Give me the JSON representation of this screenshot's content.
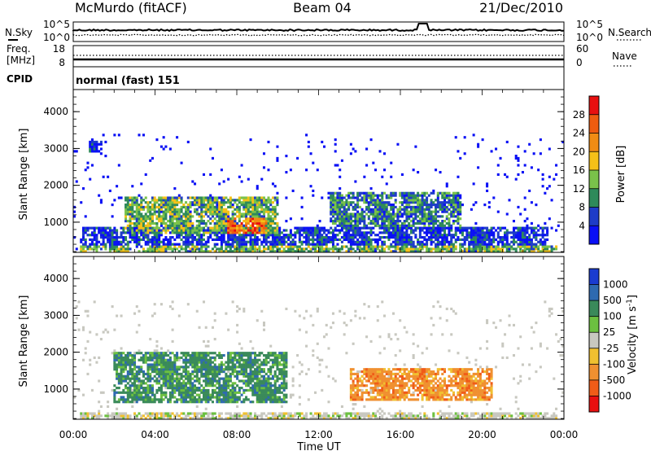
{
  "header": {
    "station": "McMurdo (fitACF)",
    "beam": "Beam 04",
    "date": "21/Dec/2010"
  },
  "noise_panel": {
    "left_label": "N.Sky",
    "left_ticks": [
      "10^5",
      "10^0"
    ],
    "right_label": "N.Search",
    "right_ticks": [
      "10^5",
      "10^0"
    ]
  },
  "freq_panel": {
    "left_label_1": "Freq.",
    "left_label_2": "[MHz]",
    "left_ticks": [
      "18",
      "8"
    ],
    "right_label": "Nave",
    "right_ticks": [
      "60",
      "0"
    ]
  },
  "cpid_panel": {
    "label": "CPID",
    "value": "normal (fast) 151"
  },
  "chart_data": [
    {
      "type": "heatmap",
      "panel": "power",
      "ylabel": "Slant Range [km]",
      "yticks": [
        "1000",
        "2000",
        "3000",
        "4000"
      ],
      "ylim": [
        180,
        4600
      ],
      "colorbar": {
        "label": "Power [dB]",
        "ticks": [
          "4",
          "8",
          "12",
          "16",
          "20",
          "24",
          "28"
        ],
        "range": [
          0,
          32
        ],
        "colors": [
          "#0a10f5",
          "#1e3cc8",
          "#2e8a5a",
          "#7ac24a",
          "#f5c018",
          "#f08c14",
          "#ee5c10",
          "#e81010"
        ]
      },
      "bands": [
        {
          "t0": 0.3,
          "t1": 23.7,
          "r0": 200,
          "r1": 400,
          "level": 3
        },
        {
          "t0": 0.4,
          "t1": 23.2,
          "r0": 400,
          "r1": 900,
          "level": 1
        },
        {
          "t0": 2.5,
          "t1": 10.0,
          "r0": 700,
          "r1": 1700,
          "level": 3
        },
        {
          "t0": 7.5,
          "t1": 9.5,
          "r0": 700,
          "r1": 1100,
          "level": 6
        },
        {
          "t0": 12.5,
          "t1": 19.0,
          "r0": 900,
          "r1": 1800,
          "level": 2
        },
        {
          "t0": 0.8,
          "t1": 1.4,
          "r0": 2900,
          "r1": 3200,
          "level": 1
        }
      ]
    },
    {
      "type": "heatmap",
      "panel": "velocity",
      "ylabel": "Slant Range [km]",
      "yticks": [
        "1000",
        "2000",
        "3000",
        "4000"
      ],
      "ylim": [
        180,
        4600
      ],
      "colorbar": {
        "label": "Velocity [m s-1]",
        "ticks": [
          "1000",
          "500",
          "100",
          "25",
          "-25",
          "-100",
          "-500",
          "-1000"
        ],
        "colors": [
          "#1a3cd0",
          "#2e6ab0",
          "#3a8a5a",
          "#6cc040",
          "#c8c8c0",
          "#f0c030",
          "#f09030",
          "#f05c18",
          "#e81010"
        ]
      },
      "bands": [
        {
          "t0": 2.0,
          "t1": 10.5,
          "r0": 600,
          "r1": 2000,
          "velocity": 300
        },
        {
          "t0": 13.5,
          "t1": 20.5,
          "r0": 700,
          "r1": 1600,
          "velocity": -150
        },
        {
          "t0": 0.3,
          "t1": 23.7,
          "r0": 200,
          "r1": 400,
          "velocity": 0
        }
      ]
    }
  ],
  "xaxis": {
    "label": "Time UT",
    "ticks": [
      "00:00",
      "04:00",
      "08:00",
      "12:00",
      "16:00",
      "20:00",
      "00:00"
    ]
  }
}
